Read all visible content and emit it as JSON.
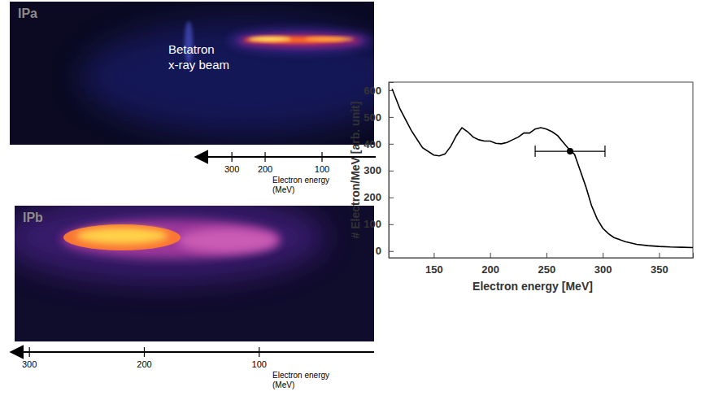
{
  "chart_data": [
    {
      "type": "image",
      "title": "IPa",
      "annotations": [
        "Betatron x-ray beam"
      ],
      "xlabel": "Electron energy (MeV)",
      "log": "x",
      "xlim": [
        460,
        52
      ],
      "xticks": [
        300,
        200,
        100
      ]
    },
    {
      "type": "image",
      "title": "IPb",
      "xlabel": "Electron energy (MeV)",
      "xlim": [
        315,
        0
      ],
      "xticks": [
        300,
        200,
        100
      ]
    },
    {
      "type": "line",
      "xlabel": "Electron energy [MeV]",
      "ylabel": "# Electron/MeV [arb. unit]",
      "color": "#000000",
      "x": [
        113,
        120,
        130,
        140,
        150,
        155,
        160,
        165,
        170,
        175,
        180,
        185,
        190,
        195,
        200,
        205,
        210,
        215,
        220,
        225,
        230,
        235,
        240,
        245,
        250,
        255,
        260,
        265,
        270,
        275,
        280,
        285,
        290,
        295,
        300,
        305,
        310,
        320,
        330,
        340,
        350,
        360,
        370,
        380
      ],
      "values": [
        605,
        530,
        450,
        385,
        358,
        355,
        362,
        390,
        430,
        460,
        445,
        425,
        415,
        410,
        410,
        402,
        400,
        405,
        415,
        425,
        440,
        440,
        455,
        460,
        455,
        445,
        430,
        405,
        380,
        360,
        300,
        240,
        170,
        120,
        85,
        65,
        50,
        35,
        25,
        20,
        17,
        15,
        14,
        13
      ],
      "xlim": [
        110,
        380
      ],
      "ylim": [
        -25,
        630
      ],
      "xticks": [
        150,
        200,
        250,
        300,
        350
      ],
      "yticks": [
        0,
        100,
        200,
        300,
        400,
        500,
        600
      ],
      "point": {
        "x": 271,
        "y": 372,
        "x_error": 31
      }
    }
  ]
}
